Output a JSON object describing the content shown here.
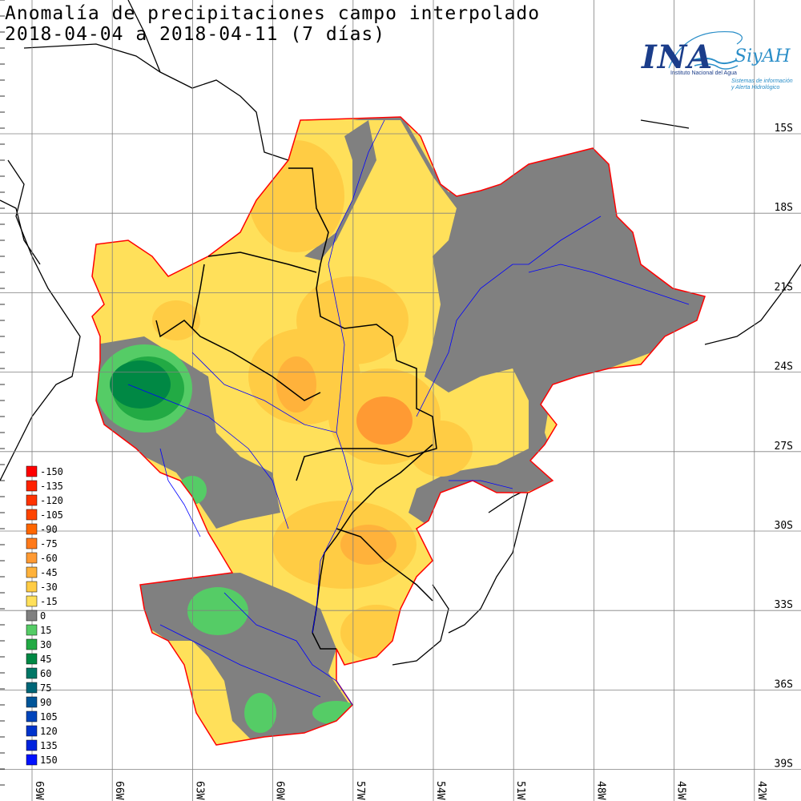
{
  "title": {
    "line1": "Anomalía de precipitaciones campo interpolado",
    "line2": "2018-04-04 a 2018-04-11 (7 días)"
  },
  "logo": {
    "name": "INA",
    "product": "SiyAH",
    "subtitle": "Instituto Nacional del Agua",
    "tagline1": "Sistemas de información",
    "tagline2": "y Alerta Hidrológico"
  },
  "map": {
    "latitude_labels": [
      "15S",
      "18S",
      "21S",
      "24S",
      "27S",
      "30S",
      "33S",
      "36S",
      "39S"
    ],
    "longitude_labels": [
      "69W",
      "66W",
      "63W",
      "60W",
      "57W",
      "54W",
      "51W",
      "48W",
      "45W",
      "42W"
    ]
  },
  "legend": {
    "items": [
      {
        "label": "-150",
        "color": "#ff0000"
      },
      {
        "label": "-135",
        "color": "#ff2200"
      },
      {
        "label": "-120",
        "color": "#ff3300"
      },
      {
        "label": "-105",
        "color": "#ff4400"
      },
      {
        "label": "-90",
        "color": "#ff6600"
      },
      {
        "label": "-75",
        "color": "#ff7a1a"
      },
      {
        "label": "-60",
        "color": "#ff9a33"
      },
      {
        "label": "-45",
        "color": "#ffb23b"
      },
      {
        "label": "-30",
        "color": "#ffcc44"
      },
      {
        "label": "-15",
        "color": "#ffe05a"
      },
      {
        "label": "0",
        "color": "#808080"
      },
      {
        "label": "15",
        "color": "#55cc66"
      },
      {
        "label": "30",
        "color": "#22aa44"
      },
      {
        "label": "45",
        "color": "#008844"
      },
      {
        "label": "60",
        "color": "#007766"
      },
      {
        "label": "75",
        "color": "#006677"
      },
      {
        "label": "90",
        "color": "#005599"
      },
      {
        "label": "105",
        "color": "#0044bb"
      },
      {
        "label": "120",
        "color": "#0033cc"
      },
      {
        "label": "135",
        "color": "#0022dd"
      },
      {
        "label": "150",
        "color": "#0011ff"
      }
    ]
  },
  "colors": {
    "basin_border": "#ff0000",
    "rivers": "#0000ff",
    "borders": "#000000",
    "grid": "#808080"
  }
}
